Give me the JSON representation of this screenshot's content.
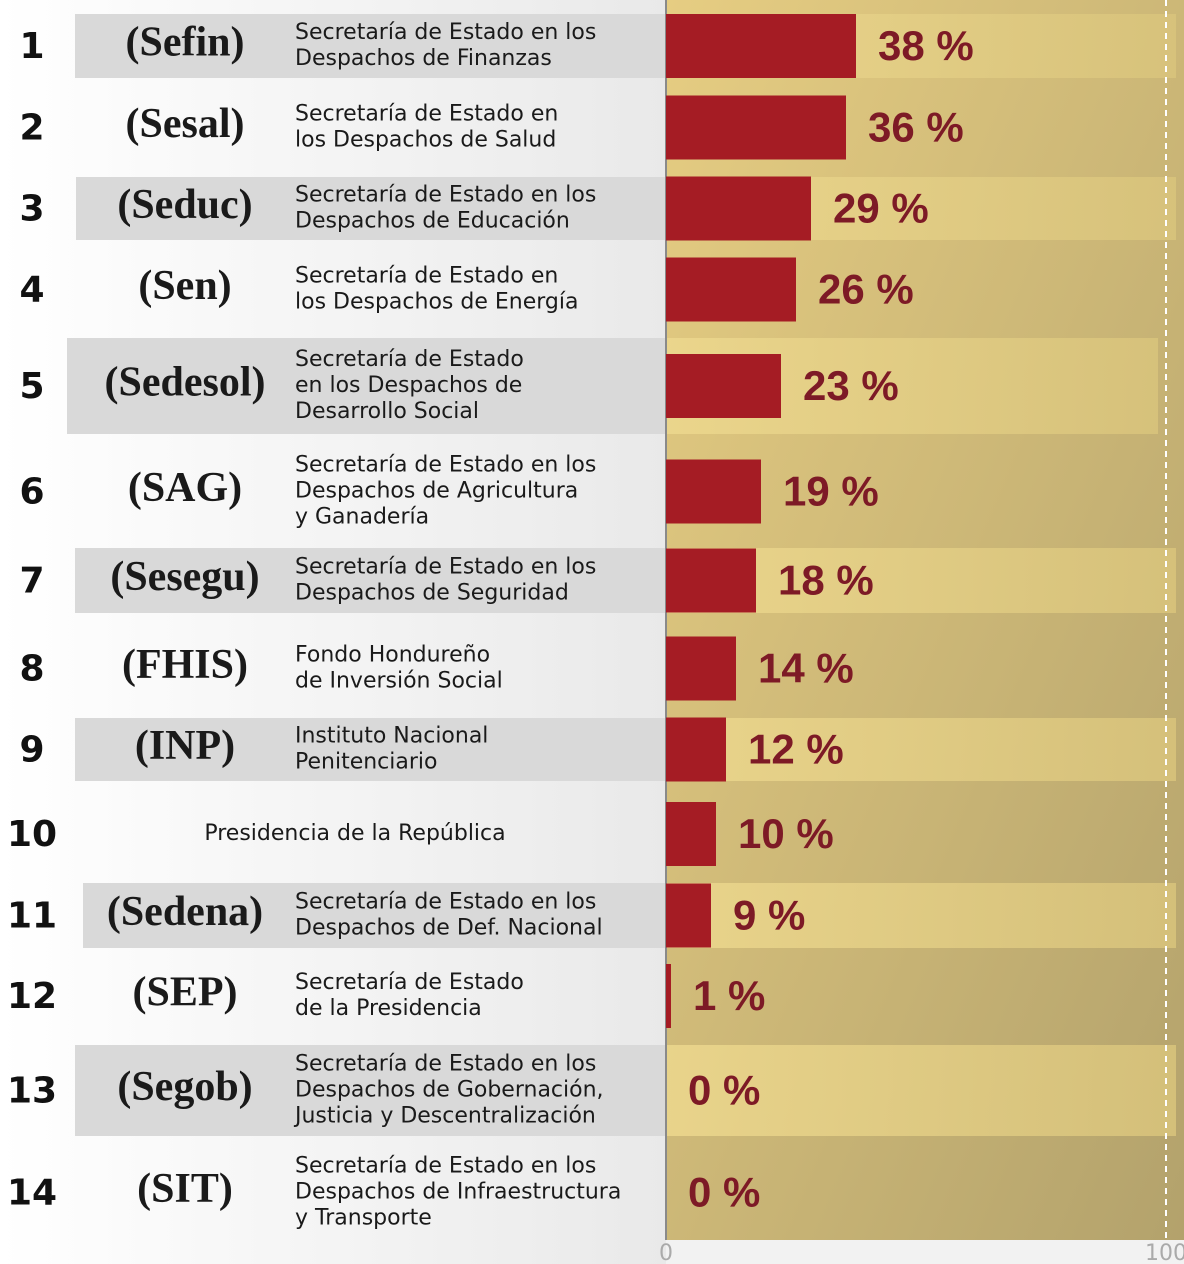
{
  "chart_data": {
    "type": "bar",
    "orientation": "horizontal",
    "ranks": [
      "1",
      "2",
      "3",
      "4",
      "5",
      "6",
      "7",
      "8",
      "9",
      "10",
      "11",
      "12",
      "13",
      "14"
    ],
    "acronyms": [
      "(Sefin)",
      "(Sesal)",
      "(Seduc)",
      "(Sen)",
      "(Sedesol)",
      "(SAG)",
      "(Sesegu)",
      "(FHIS)",
      "(INP)",
      null,
      "(Sedena)",
      "(SEP)",
      "(Segob)",
      "(SIT)"
    ],
    "categories": [
      [
        "Secretaría de Estado en los",
        "Despachos de Finanzas"
      ],
      [
        "Secretaría de Estado en",
        "los Despachos de Salud"
      ],
      [
        "Secretaría de Estado en los",
        "Despachos de Educación"
      ],
      [
        "Secretaría de Estado en",
        "los Despachos de Energía"
      ],
      [
        "Secretaría de Estado",
        "en los Despachos de",
        "Desarrollo Social"
      ],
      [
        "Secretaría de Estado en los",
        "Despachos de Agricultura",
        "y Ganadería"
      ],
      [
        "Secretaría de Estado en los",
        "Despachos de Seguridad"
      ],
      [
        "Fondo Hondureño",
        "de Inversión Social"
      ],
      [
        "Instituto Nacional",
        "Penitenciario"
      ],
      [
        "Presidencia de la República"
      ],
      [
        "Secretaría de Estado en los",
        "Despachos de Def. Nacional"
      ],
      [
        "Secretaría de Estado",
        "de la Presidencia"
      ],
      [
        "Secretaría de Estado en los",
        "Despachos de Gobernación,",
        "Justicia y Descentralización"
      ],
      [
        "Secretaría de Estado en los",
        "Despachos de Infraestructura",
        "y Transporte"
      ]
    ],
    "values": [
      38,
      36,
      29,
      26,
      23,
      19,
      18,
      14,
      12,
      10,
      9,
      1,
      0,
      0
    ],
    "value_labels": [
      "38 %",
      "36 %",
      "29 %",
      "26 %",
      "23 %",
      "19 %",
      "18 %",
      "14 %",
      "12 %",
      "10 %",
      "9 %",
      "1 %",
      "0 %",
      "0 %"
    ],
    "color": "#a51c24",
    "xlim": [
      0,
      100
    ],
    "xticks": [
      0,
      100
    ]
  }
}
